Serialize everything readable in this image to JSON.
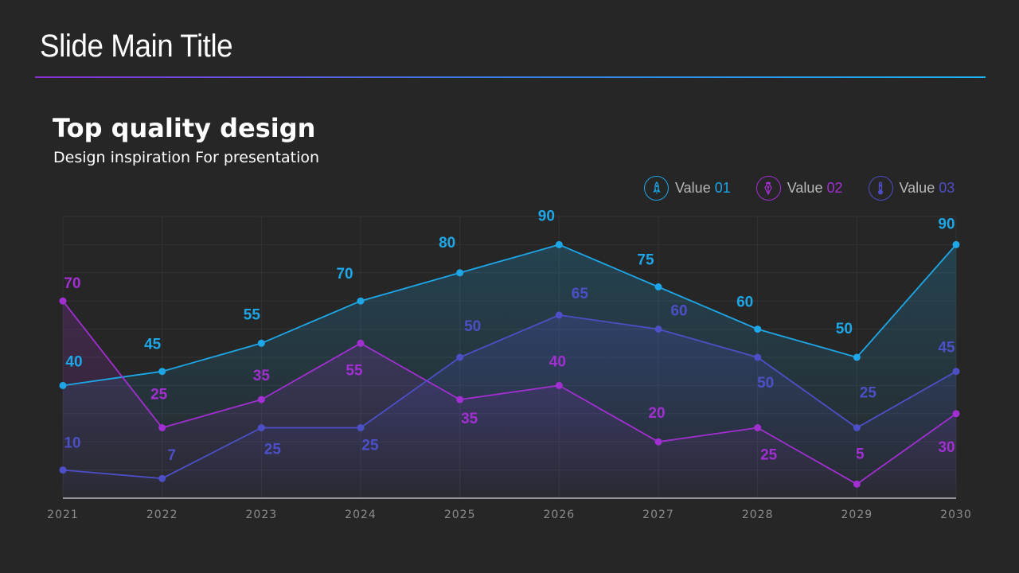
{
  "slide": {
    "title": "Slide Main Title",
    "heading": "Top quality design",
    "subheading": "Design inspiration For presentation"
  },
  "legend": [
    {
      "label": "Value",
      "num": "01",
      "color": "#1ea7e8",
      "icon": "rocket-icon"
    },
    {
      "label": "Value",
      "num": "02",
      "color": "#a22fd2",
      "icon": "pen-nib-icon"
    },
    {
      "label": "Value",
      "num": "03",
      "color": "#4d4fc6",
      "icon": "thermometer-icon"
    }
  ],
  "chart_data": {
    "type": "line",
    "title": "",
    "xlabel": "",
    "ylabel": "",
    "ylim": [
      0,
      100
    ],
    "grid": true,
    "legend_position": "top-right",
    "categories": [
      "2021",
      "2022",
      "2023",
      "2024",
      "2025",
      "2026",
      "2027",
      "2028",
      "2029",
      "2030"
    ],
    "series": [
      {
        "name": "Value 01",
        "color": "#1ea7e8",
        "values": [
          40,
          45,
          55,
          70,
          80,
          90,
          75,
          60,
          50,
          90
        ],
        "labels": [
          "40",
          "45",
          "55",
          "70",
          "80",
          "90",
          "75",
          "60",
          "50",
          "90"
        ]
      },
      {
        "name": "Value 02",
        "color": "#a22fd2",
        "values": [
          70,
          25,
          35,
          55,
          35,
          40,
          20,
          25,
          5,
          30
        ],
        "labels": [
          "70",
          "25",
          "35",
          "55",
          "35",
          "40",
          "20",
          "25",
          "5",
          "30"
        ]
      },
      {
        "name": "Value 03",
        "color": "#4d4fc6",
        "values": [
          10,
          7,
          25,
          25,
          50,
          65,
          60,
          50,
          25,
          45
        ],
        "labels": [
          "10",
          "7",
          "25",
          "25",
          "50",
          "65",
          "60",
          "50",
          "25",
          "45"
        ]
      }
    ]
  }
}
